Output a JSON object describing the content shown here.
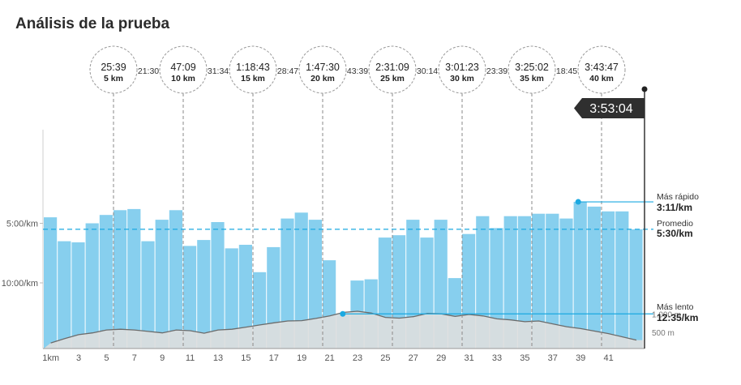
{
  "page": {
    "title": "Análisis de la prueba"
  },
  "colors": {
    "bar": "#87cfee",
    "bar_stroke": "#6fc2e6",
    "elevation_fill": "#dedede",
    "elevation_line": "#6b6b6b",
    "accent": "#1ba9e1",
    "finish_badge": "#2f2f2f"
  },
  "splits": [
    {
      "time": "25:39",
      "dist": "5 km",
      "km": 5,
      "gap_after": "21:30"
    },
    {
      "time": "47:09",
      "dist": "10 km",
      "km": 10,
      "gap_after": "31:34"
    },
    {
      "time": "1:18:43",
      "dist": "15 km",
      "km": 15,
      "gap_after": "28:47"
    },
    {
      "time": "1:47:30",
      "dist": "20 km",
      "km": 20,
      "gap_after": "43:39"
    },
    {
      "time": "2:31:09",
      "dist": "25 km",
      "km": 25,
      "gap_after": "30:14"
    },
    {
      "time": "3:01:23",
      "dist": "30 km",
      "km": 30,
      "gap_after": "23:39"
    },
    {
      "time": "3:25:02",
      "dist": "35 km",
      "km": 35,
      "gap_after": "18:45"
    },
    {
      "time": "3:43:47",
      "dist": "40 km",
      "km": 40,
      "gap_after": ""
    }
  ],
  "finish": {
    "time": "3:53:04"
  },
  "annotations": {
    "fastest": {
      "label": "Más rápido",
      "value": "3:11/km",
      "km": 39
    },
    "average": {
      "label": "Promedio",
      "value": "5:30/km"
    },
    "slowest": {
      "label": "Más lento",
      "value": "12:35/km",
      "km": 22
    }
  },
  "chart_data": {
    "type": "bar",
    "description_axis": "pace in minutes per km (lower is faster, drawn as taller bars)",
    "x": [
      1,
      2,
      3,
      4,
      5,
      6,
      7,
      8,
      9,
      10,
      11,
      12,
      13,
      14,
      15,
      16,
      17,
      18,
      19,
      20,
      21,
      22,
      23,
      24,
      25,
      26,
      27,
      28,
      29,
      30,
      31,
      32,
      33,
      34,
      35,
      36,
      37,
      38,
      39,
      40,
      41,
      42,
      43
    ],
    "x_tick_labels": [
      "1km",
      "3",
      "5",
      "7",
      "9",
      "11",
      "13",
      "15",
      "17",
      "19",
      "21",
      "23",
      "25",
      "27",
      "29",
      "31",
      "33",
      "35",
      "37",
      "39",
      "41"
    ],
    "pace_min_per_km": [
      4.5,
      6.5,
      6.6,
      5.0,
      4.3,
      3.9,
      3.8,
      6.5,
      4.7,
      3.9,
      6.9,
      6.4,
      4.9,
      7.1,
      6.8,
      9.1,
      7.0,
      4.6,
      4.1,
      4.7,
      8.1,
      12.6,
      9.8,
      9.7,
      6.2,
      6.0,
      4.7,
      6.2,
      4.7,
      9.6,
      5.9,
      4.4,
      5.4,
      4.4,
      4.4,
      4.2,
      4.2,
      4.6,
      3.2,
      3.6,
      4.0,
      4.0,
      5.5
    ],
    "y_tick_labels": [
      "5:00/km",
      "10:00/km"
    ],
    "y_ticks_minutes": [
      5,
      10
    ],
    "elevation_m": [
      200,
      320,
      430,
      480,
      560,
      580,
      560,
      520,
      480,
      560,
      540,
      470,
      560,
      580,
      640,
      700,
      760,
      810,
      820,
      880,
      950,
      1050,
      1080,
      1030,
      910,
      890,
      930,
      1020,
      1010,
      940,
      990,
      950,
      870,
      840,
      790,
      810,
      730,
      650,
      600,
      530,
      460,
      370,
      280
    ],
    "elevation_tick_labels": [
      "1.000 m",
      "500 m"
    ],
    "elevation_ticks": [
      1000,
      500
    ]
  }
}
